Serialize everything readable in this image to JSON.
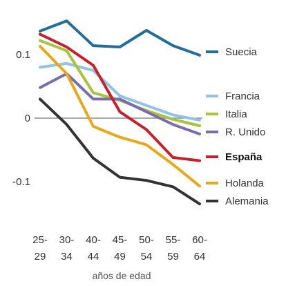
{
  "chart_data": {
    "type": "line",
    "xlabel": "años de edad",
    "categories": [
      [
        "25-",
        "29"
      ],
      [
        "30-",
        "34"
      ],
      [
        "40-",
        "44"
      ],
      [
        "45-",
        "49"
      ],
      [
        "50-",
        "54"
      ],
      [
        "55-",
        "59"
      ],
      [
        "60-",
        "64"
      ]
    ],
    "yticks": [
      {
        "value": 0.1,
        "label": "0.1"
      },
      {
        "value": 0,
        "label": "0"
      },
      {
        "value": -0.1,
        "label": "-0.1"
      }
    ],
    "ylim": [
      -0.15,
      0.15
    ],
    "grid": false,
    "zero_line": true,
    "legend_position": "right",
    "series": [
      {
        "name": "Suecia",
        "color": "#1f6f9a",
        "bold": false,
        "values": [
          0.137,
          0.153,
          0.114,
          0.112,
          0.138,
          0.114,
          0.099
        ]
      },
      {
        "name": "Francia",
        "color": "#8fc3e8",
        "bold": false,
        "values": [
          0.08,
          0.086,
          0.075,
          0.035,
          0.02,
          0.005,
          -0.003
        ]
      },
      {
        "name": "Italia",
        "color": "#a8c43a",
        "bold": false,
        "values": [
          0.122,
          0.106,
          0.04,
          0.028,
          0.012,
          -0.002,
          -0.012
        ]
      },
      {
        "name": "R. Unido",
        "color": "#7b6bb0",
        "bold": false,
        "values": [
          0.048,
          0.07,
          0.03,
          0.03,
          0.01,
          -0.01,
          -0.025
        ]
      },
      {
        "name": "España",
        "color": "#c8202a",
        "bold": true,
        "values": [
          0.132,
          0.112,
          0.083,
          0.01,
          -0.018,
          -0.062,
          -0.067
        ]
      },
      {
        "name": "Holanda",
        "color": "#e8a818",
        "bold": false,
        "values": [
          0.113,
          0.07,
          -0.013,
          -0.03,
          -0.042,
          -0.073,
          -0.107
        ]
      },
      {
        "name": "Alemania",
        "color": "#333333",
        "bold": false,
        "values": [
          0.03,
          -0.01,
          -0.063,
          -0.093,
          -0.098,
          -0.108,
          -0.135
        ]
      }
    ]
  }
}
